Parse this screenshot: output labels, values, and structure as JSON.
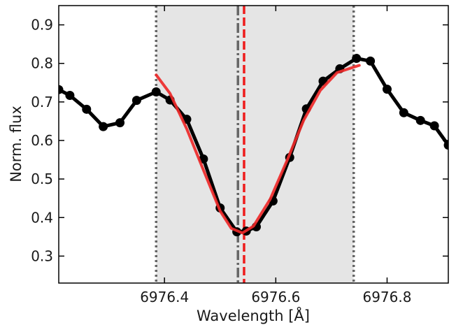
{
  "chart_data": {
    "type": "line",
    "xlabel": "Wavelength [Å]",
    "ylabel": "Norm. flux",
    "xlim": [
      6976.21,
      6976.91
    ],
    "ylim": [
      0.23,
      0.95
    ],
    "x_ticks": [
      6976.4,
      6976.6,
      6976.8
    ],
    "x_tick_labels": [
      "6976.4",
      "6976.6",
      "6976.8"
    ],
    "y_ticks": [
      0.3,
      0.4,
      0.5,
      0.6,
      0.7,
      0.8,
      0.9
    ],
    "y_tick_labels": [
      "0.3",
      "0.4",
      "0.5",
      "0.6",
      "0.7",
      "0.8",
      "0.9"
    ],
    "shaded_region": [
      6976.385,
      6976.74
    ],
    "vlines": [
      {
        "x": 6976.385,
        "style": "dotted",
        "color": "#666666"
      },
      {
        "x": 6976.74,
        "style": "dotted",
        "color": "#666666"
      },
      {
        "x": 6976.532,
        "style": "dashdot",
        "color": "#666666"
      },
      {
        "x": 6976.543,
        "style": "dashed",
        "color": "#ee1c1c"
      }
    ],
    "series": [
      {
        "style": "black-markers",
        "color": "#000000",
        "x": [
          6976.21,
          6976.23,
          6976.26,
          6976.29,
          6976.32,
          6976.35,
          6976.385,
          6976.41,
          6976.44,
          6976.47,
          6976.5,
          6976.53,
          6976.547,
          6976.565,
          6976.595,
          6976.625,
          6976.655,
          6976.685,
          6976.715,
          6976.745,
          6976.77,
          6976.8,
          6976.83,
          6976.86,
          6976.885,
          6976.91
        ],
        "y": [
          0.732,
          0.717,
          0.681,
          0.636,
          0.646,
          0.704,
          0.726,
          0.705,
          0.655,
          0.552,
          0.425,
          0.363,
          0.365,
          0.376,
          0.443,
          0.556,
          0.682,
          0.754,
          0.786,
          0.813,
          0.806,
          0.733,
          0.672,
          0.652,
          0.638,
          0.588
        ]
      },
      {
        "style": "red-fit",
        "color": "#ee2a2a",
        "x": [
          6976.385,
          6976.41,
          6976.44,
          6976.47,
          6976.5,
          6976.52,
          6976.54,
          6976.56,
          6976.59,
          6976.62,
          6976.65,
          6976.68,
          6976.71,
          6976.75
        ],
        "y": [
          0.77,
          0.722,
          0.63,
          0.523,
          0.417,
          0.372,
          0.36,
          0.378,
          0.448,
          0.547,
          0.652,
          0.73,
          0.776,
          0.795
        ]
      }
    ]
  }
}
